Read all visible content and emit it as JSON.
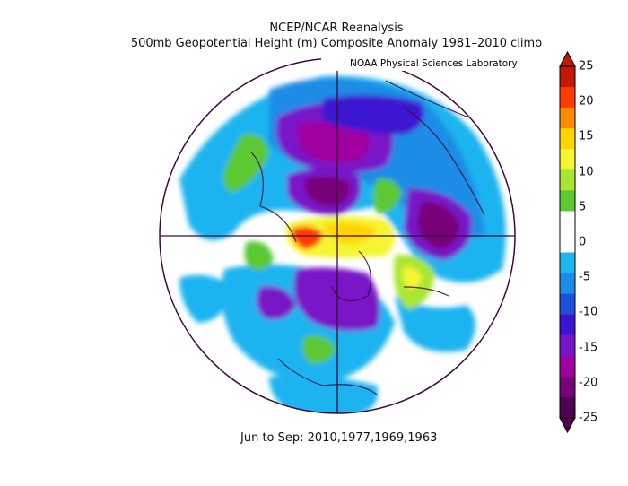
{
  "title": {
    "line1": "NCEP/NCAR Reanalysis",
    "line2": "500mb Geopotential Height (m) Composite Anomaly 1981–2010 climo"
  },
  "credit": "NOAA Physical Sciences Laboratory",
  "footer": "Jun to Sep: 2010,1977,1969,1963",
  "colorbar": {
    "ticks": [
      "25",
      "20",
      "15",
      "10",
      "5",
      "0",
      "-5",
      "-10",
      "-15",
      "-20",
      "-25"
    ],
    "colors": [
      "#c21a00",
      "#ff3b00",
      "#ff8c00",
      "#ffd400",
      "#f5f532",
      "#a8e632",
      "#5cc832",
      "#ffffff",
      "#ffffff",
      "#1eb4f0",
      "#1e8ce6",
      "#1e50dc",
      "#3c14d2",
      "#7814c8",
      "#a000a0",
      "#780078",
      "#500050"
    ],
    "top_arrow_color": "#c21a00",
    "bottom_arrow_color": "#500050"
  }
}
